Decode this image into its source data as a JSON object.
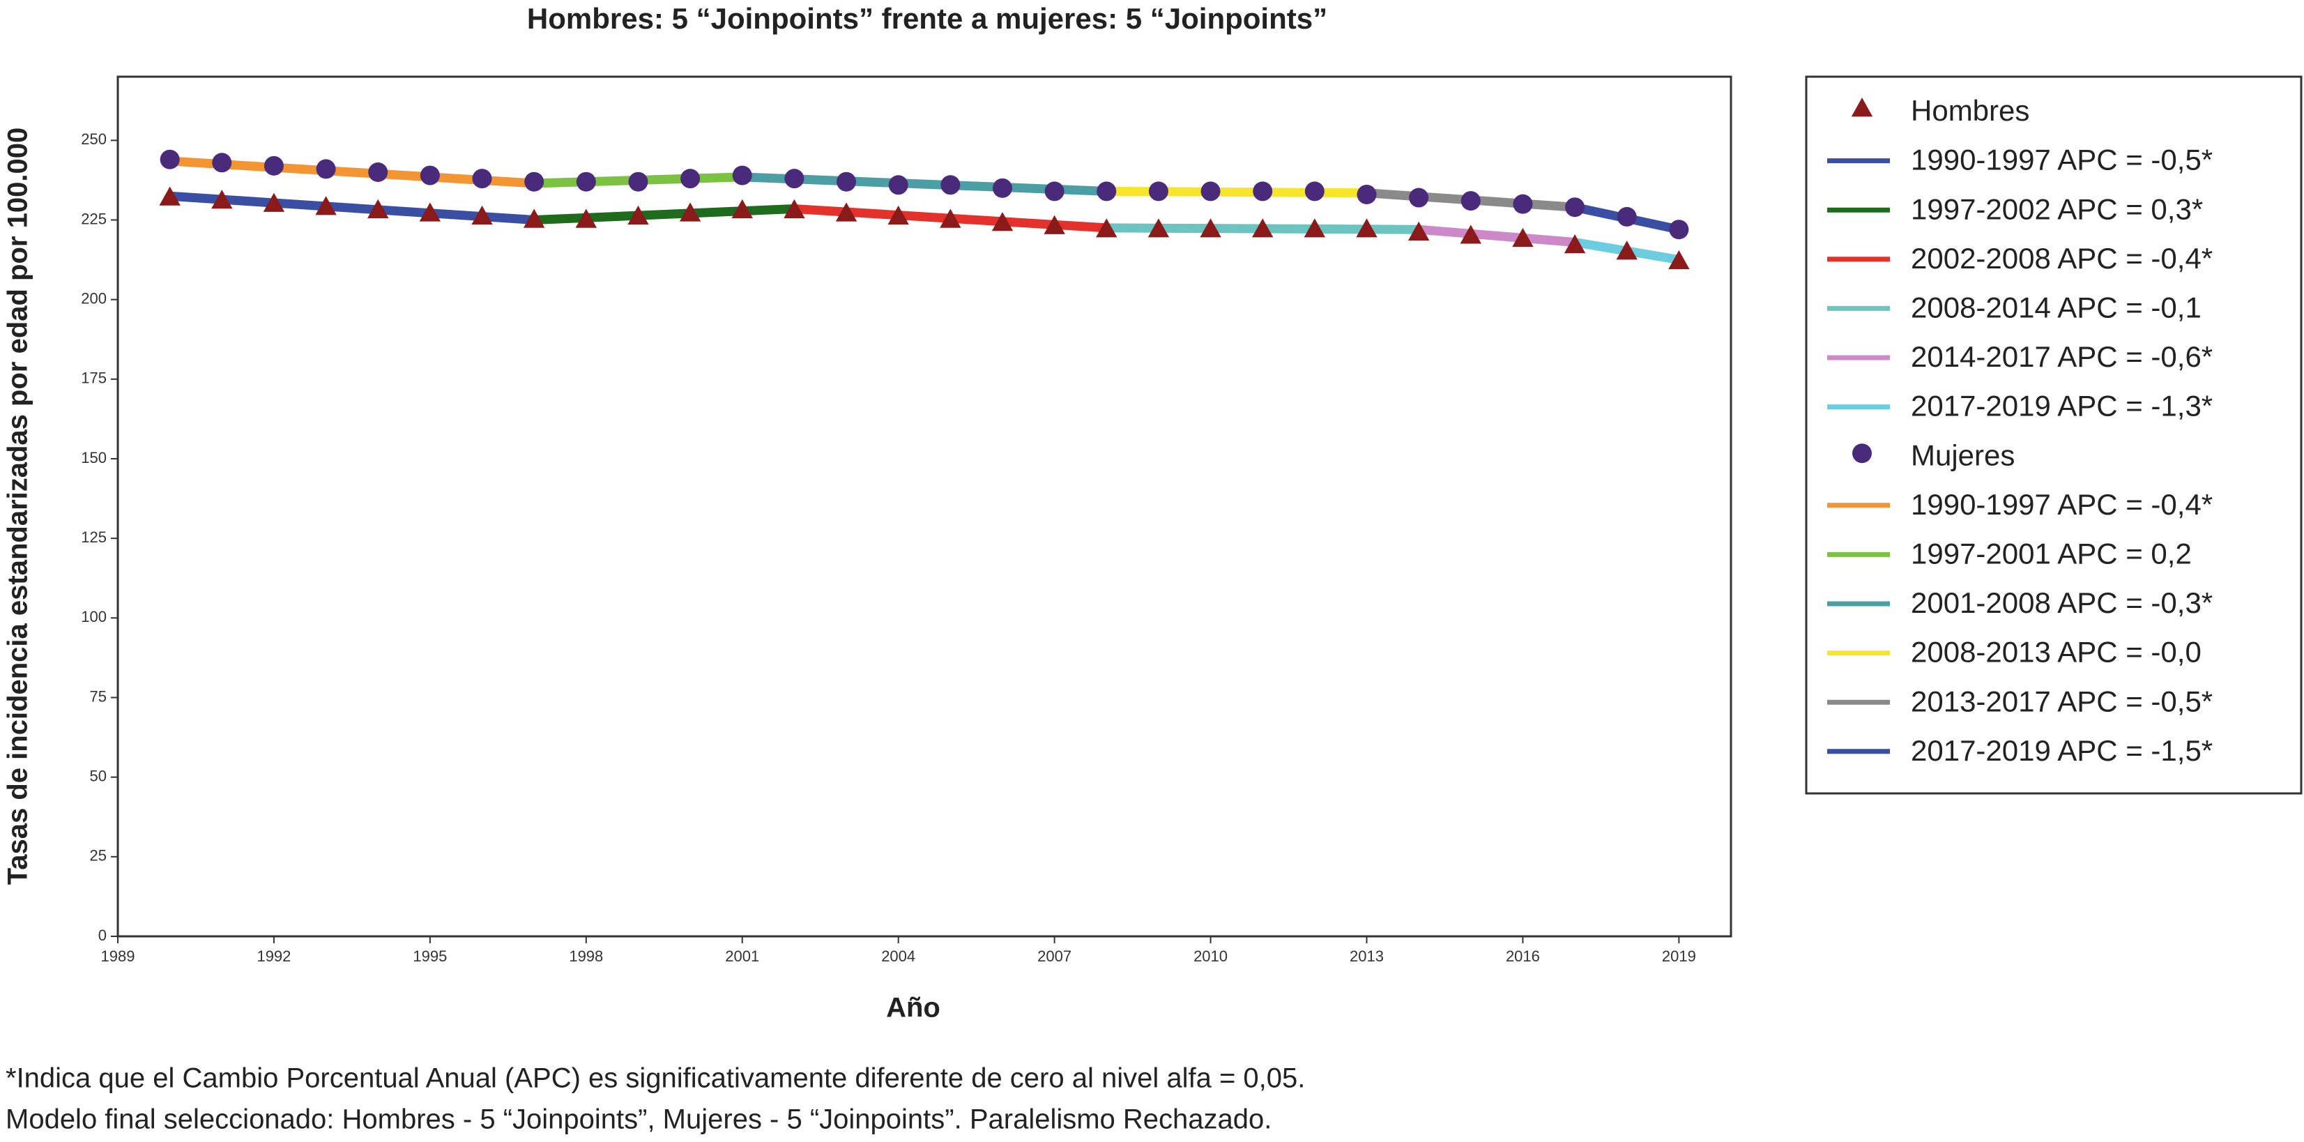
{
  "chart_data": {
    "type": "line",
    "title": "Hombres: 5 “Joinpoints” frente a mujeres: 5 “Joinpoints”",
    "x_label": "Año",
    "y_label": "Tasas de incidencia estandarizadas por edad por 100.000",
    "notes": [
      "*Indica que el Cambio Porcentual Anual (APC) es significativamente diferente de cero al nivel alfa = 0,05.",
      "Modelo final seleccionado: Hombres - 5 “Joinpoints”, Mujeres - 5 “Joinpoints”. Paralelismo Rechazado."
    ],
    "x": [
      1990,
      1991,
      1992,
      1993,
      1994,
      1995,
      1996,
      1997,
      1998,
      1999,
      2000,
      2001,
      2002,
      2003,
      2004,
      2005,
      2006,
      2007,
      2008,
      2009,
      2010,
      2011,
      2012,
      2013,
      2014,
      2015,
      2016,
      2017,
      2018,
      2019
    ],
    "xlim": [
      1989,
      2020
    ],
    "xticks": [
      1989,
      1992,
      1995,
      1998,
      2001,
      2004,
      2007,
      2010,
      2013,
      2016,
      2019
    ],
    "ylim": [
      0,
      270
    ],
    "yticks": [
      0,
      25,
      50,
      75,
      100,
      125,
      150,
      175,
      200,
      225,
      250
    ],
    "grid": false,
    "legend": "right",
    "series": [
      {
        "name": "Hombres",
        "mode": "markers",
        "marker": "triangle",
        "color": "#8b1a1a",
        "values": [
          232,
          231,
          230,
          229,
          228,
          227,
          226,
          225,
          225,
          226,
          227,
          228,
          228,
          227,
          226,
          225,
          224,
          223,
          222,
          222,
          222,
          222,
          222,
          222,
          221,
          220,
          219,
          217,
          215,
          212
        ]
      },
      {
        "name": "1990-1997 APC  = -0,5*",
        "mode": "line",
        "color": "#3a4fa3",
        "x": [
          1990,
          1997
        ],
        "values": [
          232.5,
          225
        ]
      },
      {
        "name": "1997-2002 APC  =  0,3*",
        "mode": "line",
        "color": "#1e6b1e",
        "x": [
          1997,
          2002
        ],
        "values": [
          225,
          228.5
        ]
      },
      {
        "name": "2002-2008 APC  = -0,4*",
        "mode": "line",
        "color": "#e5312b",
        "x": [
          2002,
          2008
        ],
        "values": [
          228.5,
          222.5
        ]
      },
      {
        "name": "2008-2014 APC  = -0,1",
        "mode": "line",
        "color": "#6bc4c0",
        "x": [
          2008,
          2014
        ],
        "values": [
          222.5,
          222
        ]
      },
      {
        "name": "2014-2017 APC  = -0,6*",
        "mode": "line",
        "color": "#cc88c8",
        "x": [
          2014,
          2017
        ],
        "values": [
          222,
          218
        ]
      },
      {
        "name": "2017-2019 APC  = -1,3*",
        "mode": "line",
        "color": "#6ccde0",
        "x": [
          2017,
          2019
        ],
        "values": [
          218,
          212.5
        ]
      },
      {
        "name": "Mujeres",
        "mode": "markers",
        "marker": "circle",
        "color": "#4a2a7a",
        "values": [
          244,
          243,
          242,
          241,
          240,
          239,
          238,
          237,
          237,
          237,
          238,
          239,
          238,
          237,
          236,
          236,
          235,
          234,
          234,
          234,
          234,
          234,
          234,
          233,
          232,
          231,
          230,
          229,
          226,
          222
        ]
      },
      {
        "name": "1990-1997 APC  = -0,4*",
        "mode": "line",
        "color": "#f39533",
        "x": [
          1990,
          1997
        ],
        "values": [
          243.5,
          236.5
        ]
      },
      {
        "name": "1997-2001 APC  =  0,2",
        "mode": "line",
        "color": "#7cc242",
        "x": [
          1997,
          2001
        ],
        "values": [
          236.5,
          238.5
        ]
      },
      {
        "name": "2001-2008 APC  = -0,3*",
        "mode": "line",
        "color": "#4a9ea4",
        "x": [
          2001,
          2008
        ],
        "values": [
          238.5,
          234
        ]
      },
      {
        "name": "2008-2013 APC  = -0,0",
        "mode": "line",
        "color": "#f7e52a",
        "x": [
          2008,
          2013
        ],
        "values": [
          234,
          233.5
        ]
      },
      {
        "name": "2013-2017 APC  = -0,5*",
        "mode": "line",
        "color": "#8a8a8a",
        "x": [
          2013,
          2017
        ],
        "values": [
          233.5,
          229
        ]
      },
      {
        "name": "2017-2019 APC  = -1,5*",
        "mode": "line",
        "color": "#3a4fa3",
        "x": [
          2017,
          2019
        ],
        "values": [
          229,
          222
        ]
      }
    ]
  }
}
